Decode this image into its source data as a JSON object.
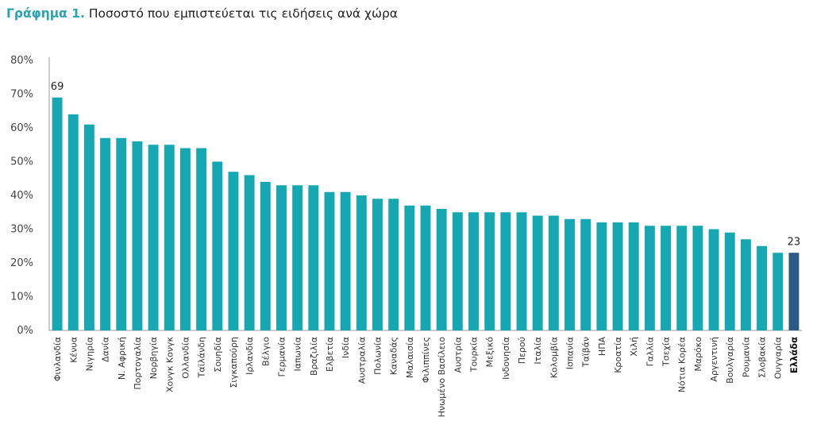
{
  "title": {
    "lead": "Γράφημα 1.",
    "rest": "Ποσοστό που εμπιστεύεται τις ειδήσεις ανά χώρα"
  },
  "colors": {
    "bar": "#15a8b3",
    "highlight": "#2c5a86",
    "axis": "#999999"
  },
  "chart_data": {
    "type": "bar",
    "title": "Γράφημα 1. Ποσοστό που εμπιστεύεται τις ειδήσεις ανά χώρα",
    "xlabel": "",
    "ylabel": "",
    "ylim": [
      0,
      80
    ],
    "yticks": [
      "0%",
      "10%",
      "20%",
      "30%",
      "40%",
      "50%",
      "60%",
      "70%",
      "80%"
    ],
    "grid": false,
    "highlight": "Ελλάδα",
    "categories": [
      "Φινλανδία",
      "Κένυα",
      "Νιγηρία",
      "Δανία",
      "Ν. Αφρική",
      "Πορτογαλία",
      "Νορβηγία",
      "Χονγκ Κονγκ",
      "Ολλανδία",
      "Ταϊλάνδη",
      "Σουηδία",
      "Σιγκαπούρη",
      "Ιρλανδία",
      "Βέλγιο",
      "Γερμανία",
      "Ιαπωνία",
      "Βραζιλία",
      "Ελβετία",
      "Ινδία",
      "Αυστραλία",
      "Πολωνία",
      "Καναδάς",
      "Μαλαισία",
      "Φιλιππίνες",
      "Ηνωμένο Βασίλειο",
      "Αυστρία",
      "Τουρκία",
      "Μεξικό",
      "Ινδονησία",
      "Περού",
      "Ιταλία",
      "Κολομβία",
      "Ισπανία",
      "Ταϊβάν",
      "ΗΠΑ",
      "Κροατία",
      "Χιλή",
      "Γαλλία",
      "Τσεχία",
      "Νότια Κορέα",
      "Μαρόκο",
      "Αργεντινή",
      "Βουλγαρία",
      "Ρουμανία",
      "Σλοβακία",
      "Ουγγαρία",
      "Ελλάδα"
    ],
    "values": [
      69,
      64,
      61,
      57,
      57,
      56,
      55,
      55,
      54,
      54,
      50,
      47,
      46,
      44,
      43,
      43,
      43,
      41,
      41,
      40,
      39,
      39,
      37,
      37,
      36,
      35,
      35,
      35,
      35,
      35,
      34,
      34,
      33,
      33,
      32,
      32,
      32,
      31,
      31,
      31,
      31,
      30,
      29,
      27,
      25,
      23,
      23
    ],
    "data_labels": {
      "Φινλανδία": "69",
      "Ελλάδα": "23"
    }
  }
}
